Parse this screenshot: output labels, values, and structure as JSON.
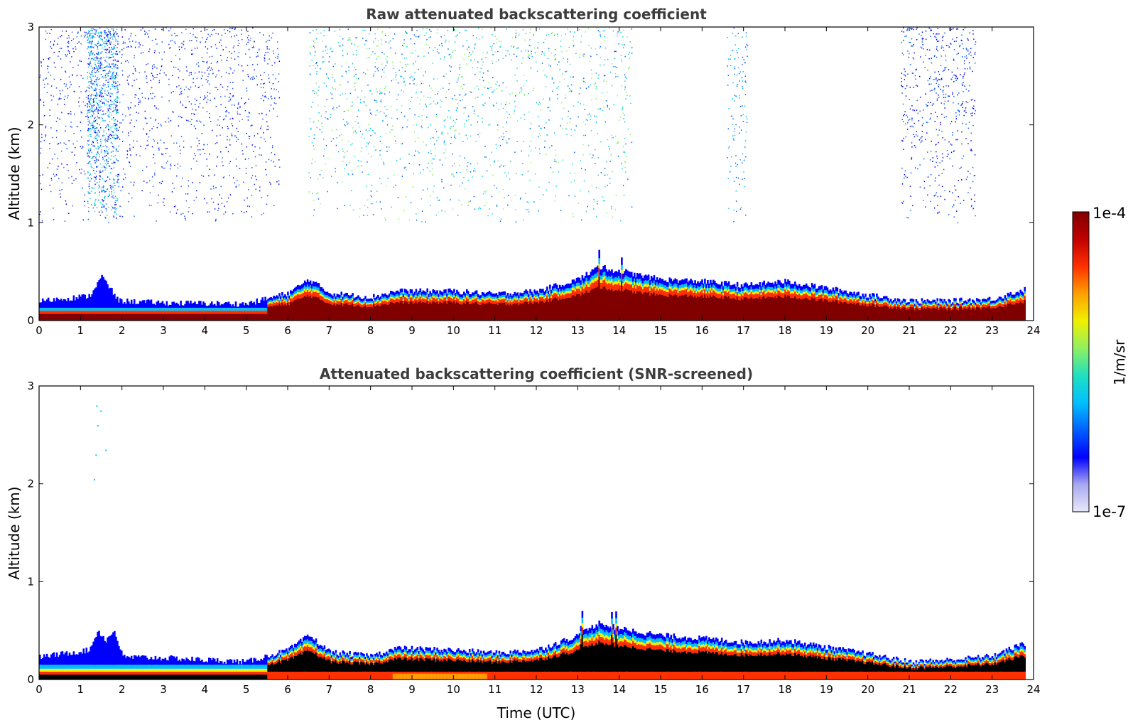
{
  "chart_data": [
    {
      "type": "heatmap",
      "title": "Raw attenuated backscattering coefficient",
      "xlabel": "",
      "ylabel": "Altitude (km)",
      "xlim": [
        0,
        24
      ],
      "ylim": [
        0,
        3
      ],
      "xticks": [
        "0",
        "1",
        "2",
        "3",
        "4",
        "5",
        "6",
        "7",
        "8",
        "9",
        "10",
        "11",
        "12",
        "13",
        "14",
        "15",
        "16",
        "17",
        "18",
        "19",
        "20",
        "21",
        "22",
        "23",
        "24"
      ],
      "yticks": [
        "0",
        "1",
        "2",
        "3"
      ],
      "boundary_layer_top_km": {
        "time_utc": [
          0,
          1.2,
          1.5,
          1.9,
          3,
          5,
          6,
          6.5,
          7,
          8,
          8.6,
          10,
          11,
          12,
          13,
          13.5,
          14,
          15,
          16,
          17,
          18,
          19,
          20,
          21,
          22,
          23,
          23.8
        ],
        "altitude_km": [
          0.2,
          0.25,
          0.45,
          0.2,
          0.18,
          0.17,
          0.28,
          0.42,
          0.28,
          0.24,
          0.3,
          0.3,
          0.27,
          0.3,
          0.42,
          0.55,
          0.5,
          0.42,
          0.4,
          0.36,
          0.4,
          0.33,
          0.26,
          0.2,
          0.2,
          0.22,
          0.32
        ]
      }
    },
    {
      "type": "heatmap",
      "title": "Attenuated backscattering coefficient (SNR-screened)",
      "xlabel": "Time (UTC)",
      "ylabel": "Altitude (km)",
      "xlim": [
        0,
        24
      ],
      "ylim": [
        0,
        3
      ],
      "xticks": [
        "0",
        "1",
        "2",
        "3",
        "4",
        "5",
        "6",
        "7",
        "8",
        "9",
        "10",
        "11",
        "12",
        "13",
        "14",
        "15",
        "16",
        "17",
        "18",
        "19",
        "20",
        "21",
        "22",
        "23",
        "24"
      ],
      "yticks": [
        "0",
        "1",
        "2",
        "3"
      ],
      "boundary_layer_top_km": {
        "time_utc": [
          0,
          1.2,
          1.4,
          1.6,
          1.8,
          2,
          3,
          5,
          6,
          6.5,
          7,
          8,
          8.6,
          10,
          11,
          12,
          13,
          13.5,
          14,
          15,
          16,
          17,
          18,
          19,
          20,
          21,
          22,
          23,
          23.7
        ],
        "altitude_km": [
          0.23,
          0.3,
          0.5,
          0.4,
          0.5,
          0.23,
          0.22,
          0.18,
          0.3,
          0.45,
          0.28,
          0.24,
          0.32,
          0.3,
          0.27,
          0.3,
          0.45,
          0.58,
          0.52,
          0.45,
          0.42,
          0.38,
          0.4,
          0.33,
          0.26,
          0.18,
          0.2,
          0.24,
          0.36
        ]
      }
    }
  ],
  "colorbar": {
    "label": "1/m/sr",
    "max_label": "1e-4",
    "min_label": "1e-7",
    "scale": "log",
    "colors": [
      "#e8e8fa",
      "#a8a8f0",
      "#0000ff",
      "#0060ff",
      "#00c0ff",
      "#20e0c0",
      "#90f060",
      "#f0f000",
      "#ffa000",
      "#ff3000",
      "#c00000",
      "#800000"
    ]
  }
}
